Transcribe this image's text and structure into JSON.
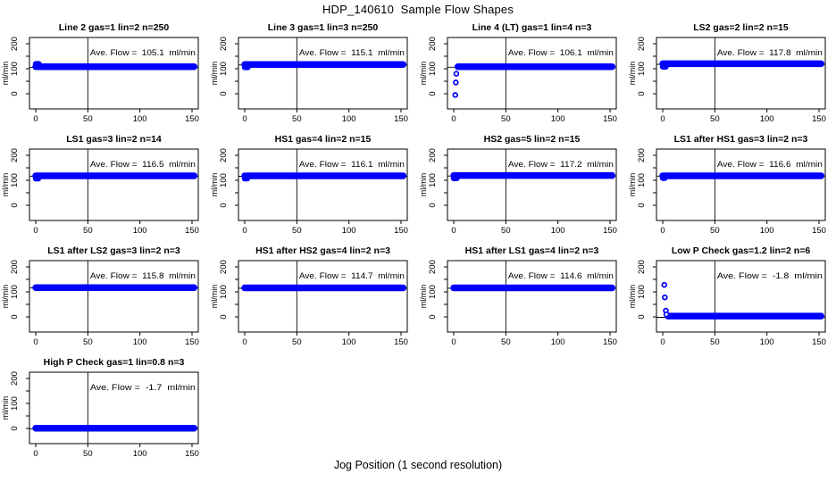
{
  "figure": {
    "title": "HDP_140610  Sample Flow Shapes",
    "xlabel": "Jog Position (1 second resolution)",
    "point_color": "#0000ff",
    "line_color": "#000000",
    "background": "#ffffff"
  },
  "axes": {
    "ylabel": "ml/min",
    "x_ticks": [
      0,
      50,
      100,
      150
    ],
    "y_ticks_all": [
      0,
      50,
      100,
      150,
      200
    ],
    "y_ticks_labeled": [
      0,
      100,
      200
    ],
    "xlim": [
      -6,
      156
    ],
    "ylim": [
      -60,
      225
    ],
    "vline_x": 50,
    "grid": false
  },
  "chart_data": {
    "type": "scatter",
    "x_unit": "seconds (jog position)",
    "y_unit": "ml/min",
    "panels": [
      {
        "id": "line2",
        "title": "Line 2 gas=1 lin=2 n=250",
        "gas": "1",
        "lin": "2",
        "n": 250,
        "ave_flow": 105.1,
        "annotation": "Ave. Flow =  105.1  ml/min",
        "band": {
          "y": 108,
          "x0": 0,
          "x1": 152
        },
        "bump": {
          "y": 119,
          "x0": 0,
          "x1": 3
        },
        "points": []
      },
      {
        "id": "line3",
        "title": "Line 3 gas=1 lin=3 n=250",
        "gas": "1",
        "lin": "3",
        "n": 250,
        "ave_flow": 115.1,
        "annotation": "Ave. Flow =  115.1  ml/min",
        "band": {
          "y": 117,
          "x0": 0,
          "x1": 152
        },
        "bump": {
          "y": 106,
          "x0": 0,
          "x1": 3
        },
        "points": []
      },
      {
        "id": "line4-lt",
        "title": "Line 4 (LT) gas=1 lin=4 n=3",
        "gas": "1",
        "lin": "4",
        "n": 3,
        "ave_flow": 106.1,
        "annotation": "Ave. Flow =  106.1  ml/min",
        "band": {
          "y": 108,
          "x0": 4,
          "x1": 152
        },
        "bump": null,
        "points": [
          [
            1.5,
            -5
          ],
          [
            2,
            45
          ],
          [
            2.5,
            80
          ]
        ]
      },
      {
        "id": "ls2",
        "title": "LS2 gas=2 lin=2 n=15",
        "gas": "2",
        "lin": "2",
        "n": 15,
        "ave_flow": 117.8,
        "annotation": "Ave. Flow =  117.8  ml/min",
        "band": {
          "y": 120,
          "x0": 0,
          "x1": 152
        },
        "bump": {
          "y": 108,
          "x0": 0,
          "x1": 3
        },
        "points": []
      },
      {
        "id": "ls1",
        "title": "LS1 gas=3 lin=2 n=14",
        "gas": "3",
        "lin": "2",
        "n": 14,
        "ave_flow": 116.5,
        "annotation": "Ave. Flow =  116.5  ml/min",
        "band": {
          "y": 118,
          "x0": 0,
          "x1": 152
        },
        "bump": {
          "y": 107,
          "x0": 0,
          "x1": 2.5
        },
        "points": []
      },
      {
        "id": "hs1",
        "title": "HS1 gas=4 lin=2 n=15",
        "gas": "4",
        "lin": "2",
        "n": 15,
        "ave_flow": 116.1,
        "annotation": "Ave. Flow =  116.1  ml/min",
        "band": {
          "y": 118,
          "x0": 0,
          "x1": 152
        },
        "bump": {
          "y": 107,
          "x0": 0,
          "x1": 2.5
        },
        "points": []
      },
      {
        "id": "hs2",
        "title": "HS2 gas=5 lin=2 n=15",
        "gas": "5",
        "lin": "2",
        "n": 15,
        "ave_flow": 117.2,
        "annotation": "Ave. Flow =  117.2  ml/min",
        "band": {
          "y": 119,
          "x0": 0,
          "x1": 152
        },
        "bump": {
          "y": 108,
          "x0": 0,
          "x1": 3
        },
        "points": []
      },
      {
        "id": "ls1-after-hs1",
        "title": "LS1 after HS1 gas=3 lin=2 n=3",
        "gas": "3",
        "lin": "2",
        "n": 3,
        "ave_flow": 116.6,
        "annotation": "Ave. Flow =  116.6  ml/min",
        "band": {
          "y": 118,
          "x0": 0,
          "x1": 152
        },
        "bump": {
          "y": 109,
          "x0": 0,
          "x1": 2
        },
        "points": []
      },
      {
        "id": "ls1-after-ls2",
        "title": "LS1 after LS2 gas=3 lin=2 n=3",
        "gas": "3",
        "lin": "2",
        "n": 3,
        "ave_flow": 115.8,
        "annotation": "Ave. Flow =  115.8  ml/min",
        "band": {
          "y": 117,
          "x0": 0,
          "x1": 152
        },
        "bump": null,
        "points": []
      },
      {
        "id": "hs1-after-hs2",
        "title": "HS1 after HS2 gas=4 lin=2 n=3",
        "gas": "4",
        "lin": "2",
        "n": 3,
        "ave_flow": 114.7,
        "annotation": "Ave. Flow =  114.7  ml/min",
        "band": {
          "y": 116,
          "x0": 0,
          "x1": 152
        },
        "bump": null,
        "points": []
      },
      {
        "id": "hs1-after-ls1",
        "title": "HS1 after LS1 gas=4 lin=2 n=3",
        "gas": "4",
        "lin": "2",
        "n": 3,
        "ave_flow": 114.6,
        "annotation": "Ave. Flow =  114.6  ml/min",
        "band": {
          "y": 116,
          "x0": 0,
          "x1": 152
        },
        "bump": null,
        "points": []
      },
      {
        "id": "low-p-check",
        "title": "Low P Check gas=1.2 lin=2 n=6",
        "gas": "1.2",
        "lin": "2",
        "n": 6,
        "ave_flow": -1.8,
        "annotation": "Ave. Flow =  -1.8  ml/min",
        "band": {
          "y": 3,
          "x0": 5,
          "x1": 152
        },
        "bump": null,
        "points": [
          [
            1.5,
            128
          ],
          [
            2,
            78
          ],
          [
            3,
            25
          ],
          [
            3.5,
            10
          ]
        ]
      },
      {
        "id": "high-p-check",
        "title": "High P Check gas=1 lin=0.8 n=3",
        "gas": "1",
        "lin": "0.8",
        "n": 3,
        "ave_flow": -1.7,
        "annotation": "Ave. Flow =  -1.7  ml/min",
        "band": {
          "y": 1,
          "x0": 0,
          "x1": 152
        },
        "bump": null,
        "points": []
      }
    ]
  }
}
